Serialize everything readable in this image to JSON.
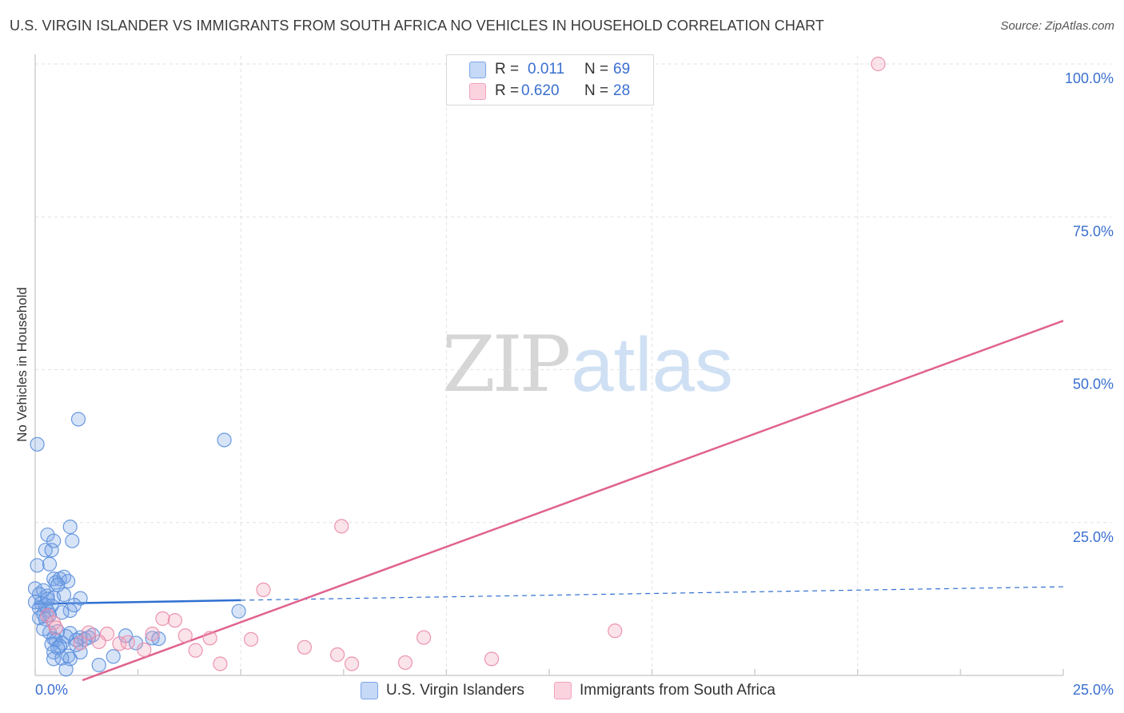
{
  "title": "U.S. VIRGIN ISLANDER VS IMMIGRANTS FROM SOUTH AFRICA NO VEHICLES IN HOUSEHOLD CORRELATION CHART",
  "source": "Source: ZipAtlas.com",
  "watermark": {
    "zip": "ZIP",
    "atlas": "atlas"
  },
  "legend": {
    "rows": [
      {
        "r_label": "R =",
        "r_value": "0.011",
        "n_label": "N =",
        "n_value": "69",
        "color": "#7aa6e8"
      },
      {
        "r_label": "R =",
        "r_value": "0.620",
        "n_label": "N =",
        "n_value": "28",
        "color": "#f1a2bb"
      }
    ]
  },
  "chart_data": {
    "type": "scatter",
    "title": "U.S. VIRGIN ISLANDER VS IMMIGRANTS FROM SOUTH AFRICA NO VEHICLES IN HOUSEHOLD CORRELATION CHART",
    "xlabel": "",
    "ylabel": "No Vehicles in Household",
    "xlim": [
      0,
      25
    ],
    "ylim": [
      0,
      100
    ],
    "x_tick_labels": [
      "0.0%",
      "25.0%"
    ],
    "y_tick_labels": [
      "25.0%",
      "50.0%",
      "75.0%",
      "100.0%"
    ],
    "y_ticks": [
      25,
      50,
      75,
      100
    ],
    "x_grid": [
      0,
      2.5,
      5,
      7.5,
      10,
      12.5,
      15,
      17.5,
      20,
      22.5,
      25
    ],
    "grid": true,
    "legend_position": "top-center",
    "series": [
      {
        "name": "U.S. Virgin Islanders",
        "color": "#7aa6e8",
        "stroke": "#5b8fdc",
        "trend": {
          "x0": 0,
          "y0": 11.7,
          "x1": 5,
          "y1": 12.3,
          "solid_to": 5,
          "dashed_to": 25,
          "y_at_25": 14.5,
          "color": "#2f6fd0"
        },
        "points": [
          [
            0.05,
            37.8
          ],
          [
            1.05,
            41.9
          ],
          [
            4.6,
            38.5
          ],
          [
            0.85,
            24.3
          ],
          [
            0.3,
            23.0
          ],
          [
            0.45,
            22.0
          ],
          [
            0.9,
            22.0
          ],
          [
            0.25,
            20.5
          ],
          [
            0.4,
            20.5
          ],
          [
            0.05,
            18.0
          ],
          [
            0.35,
            18.2
          ],
          [
            0.45,
            15.8
          ],
          [
            0.6,
            15.8
          ],
          [
            0.7,
            16.1
          ],
          [
            0.8,
            15.4
          ],
          [
            0.5,
            15.2
          ],
          [
            0.0,
            14.2
          ],
          [
            0.2,
            13.9
          ],
          [
            0.1,
            13.3
          ],
          [
            0.3,
            13.0
          ],
          [
            0.45,
            12.7
          ],
          [
            0.7,
            13.2
          ],
          [
            1.1,
            12.6
          ],
          [
            0.0,
            12.0
          ],
          [
            0.15,
            11.8
          ],
          [
            0.25,
            11.5
          ],
          [
            0.4,
            11.4
          ],
          [
            0.95,
            11.5
          ],
          [
            0.1,
            11.0
          ],
          [
            0.3,
            10.6
          ],
          [
            0.85,
            10.6
          ],
          [
            0.65,
            10.3
          ],
          [
            0.2,
            10.0
          ],
          [
            0.35,
            9.9
          ],
          [
            0.1,
            9.4
          ],
          [
            0.25,
            9.2
          ],
          [
            4.95,
            10.5
          ],
          [
            0.55,
            7.2
          ],
          [
            0.35,
            7.0
          ],
          [
            0.85,
            6.9
          ],
          [
            0.75,
            6.4
          ],
          [
            1.1,
            6.2
          ],
          [
            1.4,
            6.6
          ],
          [
            0.45,
            6.0
          ],
          [
            0.5,
            5.8
          ],
          [
            1.0,
            5.8
          ],
          [
            0.65,
            5.3
          ],
          [
            1.2,
            5.9
          ],
          [
            1.3,
            6.2
          ],
          [
            0.4,
            5.1
          ],
          [
            0.6,
            4.8
          ],
          [
            2.2,
            6.5
          ],
          [
            2.45,
            5.3
          ],
          [
            2.85,
            6.1
          ],
          [
            3.0,
            6.0
          ],
          [
            0.55,
            4.5
          ],
          [
            1.1,
            3.8
          ],
          [
            0.45,
            3.8
          ],
          [
            0.8,
            3.2
          ],
          [
            0.85,
            2.7
          ],
          [
            0.45,
            2.7
          ],
          [
            0.65,
            2.8
          ],
          [
            1.9,
            3.1
          ],
          [
            1.55,
            1.7
          ],
          [
            0.75,
            1.0
          ],
          [
            0.3,
            12.5
          ],
          [
            0.55,
            14.8
          ],
          [
            0.2,
            7.6
          ],
          [
            1.0,
            5.0
          ]
        ]
      },
      {
        "name": "Immigrants from South Africa",
        "color": "#f1a2bb",
        "stroke": "#e98aa8",
        "trend": {
          "x0": 1.15,
          "y0": -1.5,
          "x1": 25,
          "y1": 58.0,
          "color": "#e0628e"
        },
        "points": [
          [
            20.5,
            100.0
          ],
          [
            7.45,
            24.4
          ],
          [
            5.55,
            14.0
          ],
          [
            0.3,
            9.8
          ],
          [
            0.45,
            8.6
          ],
          [
            3.1,
            9.3
          ],
          [
            3.4,
            9.0
          ],
          [
            14.1,
            7.3
          ],
          [
            1.3,
            7.0
          ],
          [
            1.75,
            6.8
          ],
          [
            2.85,
            6.8
          ],
          [
            3.65,
            6.5
          ],
          [
            9.45,
            6.2
          ],
          [
            4.25,
            6.1
          ],
          [
            5.25,
            5.9
          ],
          [
            1.55,
            5.5
          ],
          [
            2.05,
            5.2
          ],
          [
            2.25,
            5.4
          ],
          [
            1.1,
            5.3
          ],
          [
            6.55,
            4.6
          ],
          [
            2.65,
            4.2
          ],
          [
            3.9,
            4.1
          ],
          [
            7.35,
            3.4
          ],
          [
            11.1,
            2.7
          ],
          [
            4.5,
            1.9
          ],
          [
            7.7,
            1.9
          ],
          [
            9.0,
            2.1
          ],
          [
            0.5,
            7.8
          ]
        ]
      }
    ]
  }
}
